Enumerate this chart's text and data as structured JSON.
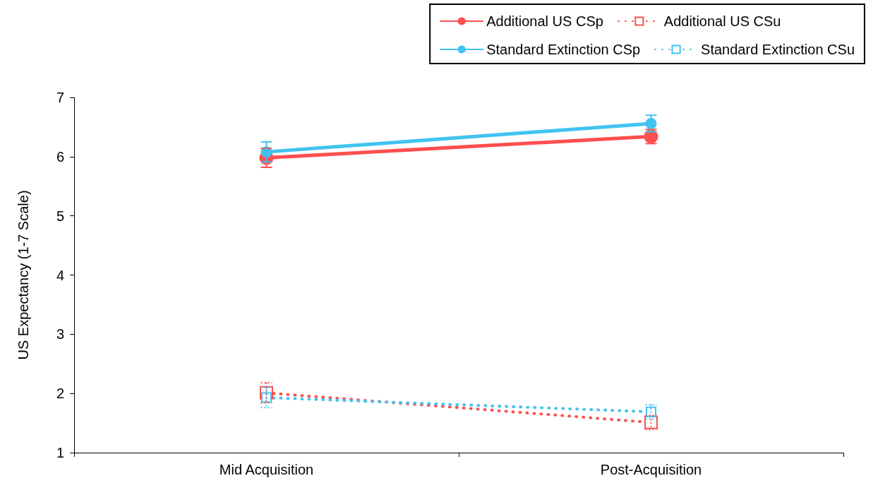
{
  "chart_data": {
    "type": "line",
    "ylabel": "US Expectancy (1-7 Scale)",
    "categories": [
      "Mid Acquisition",
      "Post-Acquisition"
    ],
    "ylim": [
      1,
      7
    ],
    "yticks": [
      1,
      2,
      3,
      4,
      5,
      6,
      7
    ],
    "grid": false,
    "legend": "top right",
    "series": [
      {
        "name": "Additional US CSp",
        "color": "#ff4f4f",
        "values": [
          5.98,
          6.34
        ],
        "errors": [
          0.16,
          0.12
        ],
        "marker": "circle",
        "line_style": "solid"
      },
      {
        "name": "Additional US CSu",
        "color": "#ff4f4f",
        "values": [
          2.01,
          1.51
        ],
        "errors": [
          0.17,
          0.12
        ],
        "marker": "square",
        "line_style": "dotted"
      },
      {
        "name": "Standard Extinction CSp",
        "color": "#41c3f0",
        "values": [
          6.08,
          6.56
        ],
        "errors": [
          0.17,
          0.14
        ],
        "marker": "circle",
        "line_style": "solid"
      },
      {
        "name": "Standard Extinction CSu",
        "color": "#41c3f0",
        "values": [
          1.93,
          1.69
        ],
        "errors": [
          0.17,
          0.12
        ],
        "marker": "square",
        "line_style": "dotted"
      }
    ]
  }
}
